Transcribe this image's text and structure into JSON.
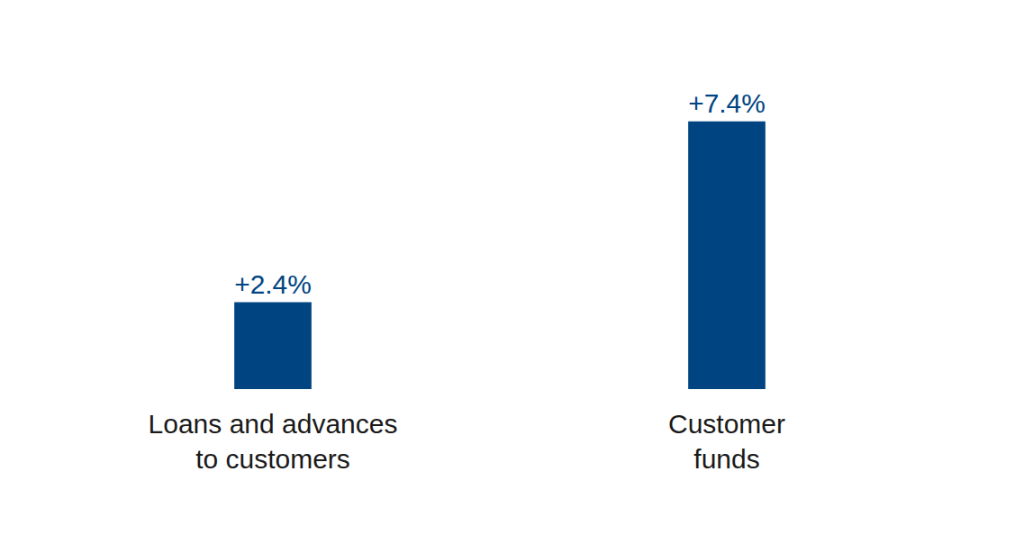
{
  "chart_data": {
    "type": "bar",
    "categories": [
      "Loans and advances to customers",
      "Customer funds"
    ],
    "values": [
      2.4,
      7.4
    ],
    "value_labels": [
      "+2.4%",
      "+7.4%"
    ],
    "color": "#004481",
    "data_labels": true,
    "tick_labels": "x",
    "grid": false
  }
}
